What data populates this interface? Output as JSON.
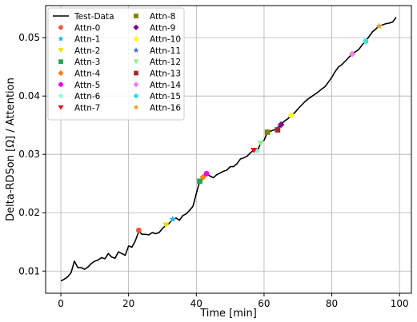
{
  "chart_data": {
    "type": "line",
    "title": "",
    "xlabel": "Time [min]",
    "ylabel": "Delta-RDSon [Ω] / Attention",
    "xlim": [
      -4.5,
      103.5
    ],
    "ylim": [
      0.0062,
      0.0555
    ],
    "xticks": [
      0,
      20,
      40,
      60,
      80,
      100
    ],
    "yticks": [
      0.01,
      0.02,
      0.03,
      0.04,
      0.05
    ],
    "xtick_labels": [
      "0",
      "20",
      "40",
      "60",
      "80",
      "100"
    ],
    "ytick_labels": [
      "0.01",
      "0.02",
      "0.03",
      "0.04",
      "0.05"
    ],
    "grid": true,
    "legend_position": "top-left",
    "series": [
      {
        "name": "Test-Data",
        "kind": "line",
        "color": "#000000",
        "x": [
          0,
          1,
          2,
          3,
          4,
          5,
          6,
          7,
          8,
          9,
          10,
          11,
          12,
          13,
          14,
          15,
          16,
          17,
          18,
          19,
          20,
          21,
          22,
          23,
          24,
          25,
          26,
          27,
          28,
          29,
          30,
          31,
          32,
          33,
          34,
          35,
          36,
          37,
          38,
          39,
          40,
          41,
          42,
          43,
          44,
          45,
          46,
          47,
          48,
          49,
          50,
          51,
          52,
          53,
          54,
          55,
          56,
          57,
          58,
          59,
          60,
          61,
          62,
          63,
          64,
          65,
          66,
          67,
          68,
          69,
          70,
          71,
          72,
          73,
          74,
          75,
          76,
          77,
          78,
          79,
          80,
          81,
          82,
          83,
          84,
          85,
          86,
          87,
          88,
          89,
          90,
          91,
          92,
          93,
          94,
          95,
          96,
          97,
          98,
          99
        ],
        "y": [
          0.0083,
          0.0086,
          0.009,
          0.0097,
          0.0117,
          0.0106,
          0.0106,
          0.0103,
          0.0107,
          0.0113,
          0.0117,
          0.0119,
          0.0123,
          0.0121,
          0.013,
          0.0124,
          0.0122,
          0.0133,
          0.013,
          0.0127,
          0.0143,
          0.0141,
          0.0152,
          0.0168,
          0.0163,
          0.0163,
          0.0162,
          0.0166,
          0.0164,
          0.0166,
          0.0173,
          0.0178,
          0.0182,
          0.0188,
          0.0191,
          0.0187,
          0.0195,
          0.0198,
          0.0204,
          0.0211,
          0.0233,
          0.0254,
          0.0261,
          0.0267,
          0.0263,
          0.026,
          0.0265,
          0.0268,
          0.0271,
          0.0273,
          0.0279,
          0.0279,
          0.0284,
          0.0292,
          0.0294,
          0.0297,
          0.0303,
          0.0307,
          0.0306,
          0.0319,
          0.0324,
          0.0338,
          0.034,
          0.0342,
          0.0344,
          0.0351,
          0.0357,
          0.0361,
          0.0367,
          0.0371,
          0.0378,
          0.0384,
          0.039,
          0.0395,
          0.0399,
          0.0403,
          0.0407,
          0.0412,
          0.0416,
          0.0424,
          0.0432,
          0.0442,
          0.045,
          0.0454,
          0.046,
          0.0466,
          0.0472,
          0.0476,
          0.048,
          0.0488,
          0.0494,
          0.0502,
          0.051,
          0.0515,
          0.052,
          0.0522,
          0.0524,
          0.0525,
          0.0527,
          0.0535
        ]
      },
      {
        "name": "Attn-0",
        "kind": "marker",
        "marker": "circle",
        "color": "#ee5a40",
        "x": [
          23
        ],
        "y": [
          0.017
        ]
      },
      {
        "name": "Attn-1",
        "kind": "marker",
        "marker": "star",
        "color": "#1eb3ea",
        "x": [
          33
        ],
        "y": [
          0.0189
        ]
      },
      {
        "name": "Attn-2",
        "kind": "marker",
        "marker": "triangle-down",
        "color": "#f2dc00",
        "x": [
          31
        ],
        "y": [
          0.0179
        ]
      },
      {
        "name": "Attn-3",
        "kind": "marker",
        "marker": "square",
        "color": "#2aa34a",
        "x": [
          41
        ],
        "y": [
          0.0254
        ]
      },
      {
        "name": "Attn-4",
        "kind": "marker",
        "marker": "diamond",
        "color": "#ff7f0e",
        "x": [
          42
        ],
        "y": [
          0.0261
        ]
      },
      {
        "name": "Attn-5",
        "kind": "marker",
        "marker": "circle",
        "color": "#ee00ee",
        "x": [
          43
        ],
        "y": [
          0.0267
        ]
      },
      {
        "name": "Attn-6",
        "kind": "marker",
        "marker": "star",
        "color": "#7fffd4",
        "x": [
          58
        ],
        "y": [
          0.0306
        ]
      },
      {
        "name": "Attn-7",
        "kind": "marker",
        "marker": "triangle-down",
        "color": "#e8141e",
        "x": [
          57
        ],
        "y": [
          0.0307
        ]
      },
      {
        "name": "Attn-8",
        "kind": "marker",
        "marker": "square",
        "color": "#808000",
        "x": [
          61
        ],
        "y": [
          0.0338
        ]
      },
      {
        "name": "Attn-9",
        "kind": "marker",
        "marker": "diamond",
        "color": "#800080",
        "x": [
          65
        ],
        "y": [
          0.0351
        ]
      },
      {
        "name": "Attn-10",
        "kind": "marker",
        "marker": "circle",
        "color": "#ffff00",
        "x": [
          68
        ],
        "y": [
          0.0367
        ]
      },
      {
        "name": "Attn-11",
        "kind": "marker",
        "marker": "star",
        "color": "#4169e1",
        "x": [
          64
        ],
        "y": [
          0.0344
        ]
      },
      {
        "name": "Attn-12",
        "kind": "marker",
        "marker": "triangle-down",
        "color": "#90ee90",
        "x": [
          59
        ],
        "y": [
          0.0319
        ]
      },
      {
        "name": "Attn-13",
        "kind": "marker",
        "marker": "square",
        "color": "#a52a2a",
        "x": [
          64
        ],
        "y": [
          0.0342
        ]
      },
      {
        "name": "Attn-14",
        "kind": "marker",
        "marker": "diamond",
        "color": "#ee82ee",
        "x": [
          86
        ],
        "y": [
          0.0472
        ]
      },
      {
        "name": "Attn-15",
        "kind": "marker",
        "marker": "circle",
        "color": "#40e0d0",
        "x": [
          90
        ],
        "y": [
          0.0494
        ]
      },
      {
        "name": "Attn-16",
        "kind": "marker",
        "marker": "star",
        "color": "#daa520",
        "x": [
          94
        ],
        "y": [
          0.052
        ]
      }
    ]
  }
}
